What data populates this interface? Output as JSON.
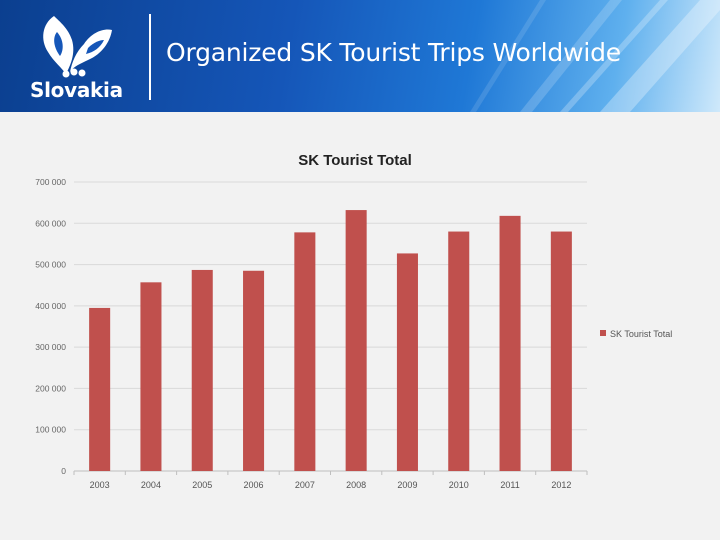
{
  "header": {
    "title": "Organized SK Tourist Trips Worldwide",
    "brand": "Slovakia",
    "colors": {
      "banner_dark": "#0b3f8f",
      "banner_light": "#5fb0ee"
    }
  },
  "chart_data": {
    "type": "bar",
    "title": "SK Tourist Total",
    "categories": [
      "2003",
      "2004",
      "2005",
      "2006",
      "2007",
      "2008",
      "2009",
      "2010",
      "2011",
      "2012"
    ],
    "series": [
      {
        "name": "SK Tourist Total",
        "color": "#c0504d",
        "values": [
          395000,
          457000,
          487000,
          485000,
          578000,
          632000,
          527000,
          580000,
          618000,
          580000
        ]
      }
    ],
    "ylim": [
      0,
      700000
    ],
    "yticks": [
      0,
      100000,
      200000,
      300000,
      400000,
      500000,
      600000,
      700000
    ],
    "ytick_labels": [
      "0",
      "100 000",
      "200 000",
      "300 000",
      "400 000",
      "500 000",
      "600 000",
      "700 000"
    ],
    "grid": true,
    "legend": "right"
  }
}
